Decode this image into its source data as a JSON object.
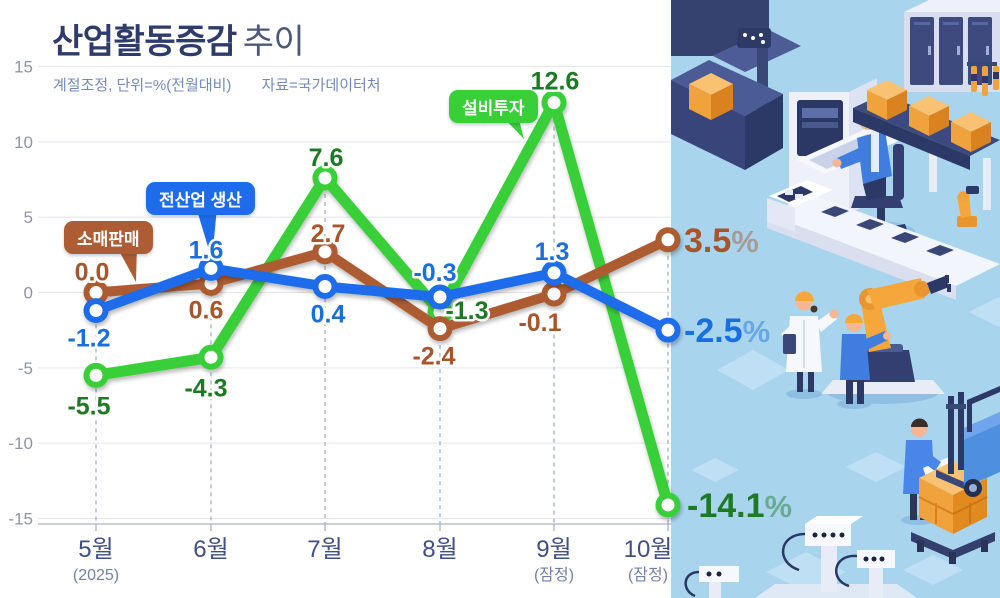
{
  "header": {
    "title_main": "산업활동증감",
    "title_tail": "추이",
    "subtitle_unit": "계절조정, 단위=%(전월대비)",
    "subtitle_source": "자료=국가데이터처"
  },
  "chart_data": {
    "type": "line",
    "unit": "%",
    "title": "산업활동증감 추이",
    "categories": [
      "5월",
      "6월",
      "7월",
      "8월",
      "9월",
      "10월"
    ],
    "category_notes": [
      "(2025)",
      "",
      "",
      "",
      "(잠정)",
      "(잠정)"
    ],
    "ylim": [
      -15,
      15
    ],
    "yticks": [
      15,
      10,
      5,
      0,
      -5,
      -10,
      -15
    ],
    "grid": true,
    "legend_position": "inline-badges",
    "series": [
      {
        "name": "소매판매",
        "color": "#ad5c33",
        "label_color": "#a8552b",
        "values": [
          0.0,
          0.6,
          2.7,
          -2.4,
          -0.1,
          3.5
        ],
        "final_label": "3.5%"
      },
      {
        "name": "전산업 생산",
        "color": "#1c6cec",
        "label_color": "#1a6fe0",
        "values": [
          -1.2,
          1.6,
          0.4,
          -0.3,
          1.3,
          -2.5
        ],
        "final_label": "-2.5%"
      },
      {
        "name": "설비투자",
        "color": "#39cf39",
        "label_color": "#1d7a24",
        "values": [
          -5.5,
          -4.3,
          7.6,
          -1.3,
          12.6,
          -14.1
        ],
        "final_label": "-14.1%"
      }
    ]
  }
}
